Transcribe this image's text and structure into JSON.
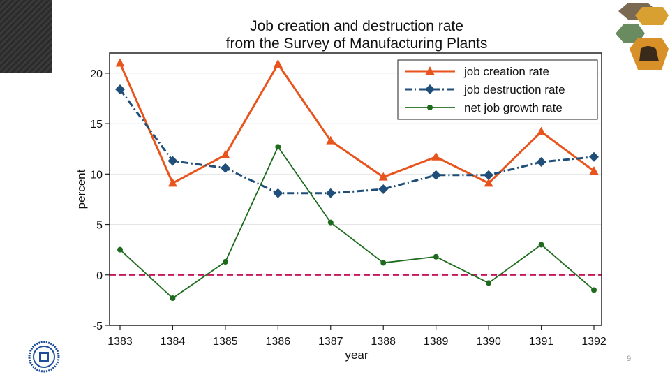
{
  "slide": {
    "page_number": "9",
    "logo_name": "university-seal"
  },
  "colors": {
    "creation": "#e8541c",
    "destruction": "#1f4e79",
    "net": "#1e6b1e",
    "zero_line": "#c2185b",
    "grid": "#e6e6e6"
  },
  "chart_data": {
    "type": "line",
    "title": [
      "Job creation and destruction rate",
      "from the Survey of Manufacturing Plants"
    ],
    "xlabel": "year",
    "ylabel": "percent",
    "x": [
      "1383",
      "1384",
      "1385",
      "1386",
      "1387",
      "1388",
      "1389",
      "1390",
      "1391",
      "1392"
    ],
    "ylim": [
      -5,
      22
    ],
    "yticks": [
      "-5",
      "0",
      "5",
      "10",
      "15",
      "20"
    ],
    "grid": true,
    "legend_position": "top-right",
    "reference_line": 0,
    "series": [
      {
        "name": "job creation rate",
        "marker": "triangle",
        "style": "solid",
        "values": [
          21.0,
          9.1,
          11.9,
          20.9,
          13.3,
          9.7,
          11.7,
          9.1,
          14.2,
          10.3
        ]
      },
      {
        "name": "job destruction rate",
        "marker": "diamond",
        "style": "dashdot",
        "values": [
          18.4,
          11.3,
          10.6,
          8.1,
          8.1,
          8.5,
          9.9,
          9.9,
          11.2,
          11.7
        ]
      },
      {
        "name": "net job growth rate",
        "marker": "circle",
        "style": "solid",
        "values": [
          2.5,
          -2.3,
          1.3,
          12.7,
          5.2,
          1.2,
          1.8,
          -0.8,
          3.0,
          -1.5
        ]
      }
    ]
  }
}
